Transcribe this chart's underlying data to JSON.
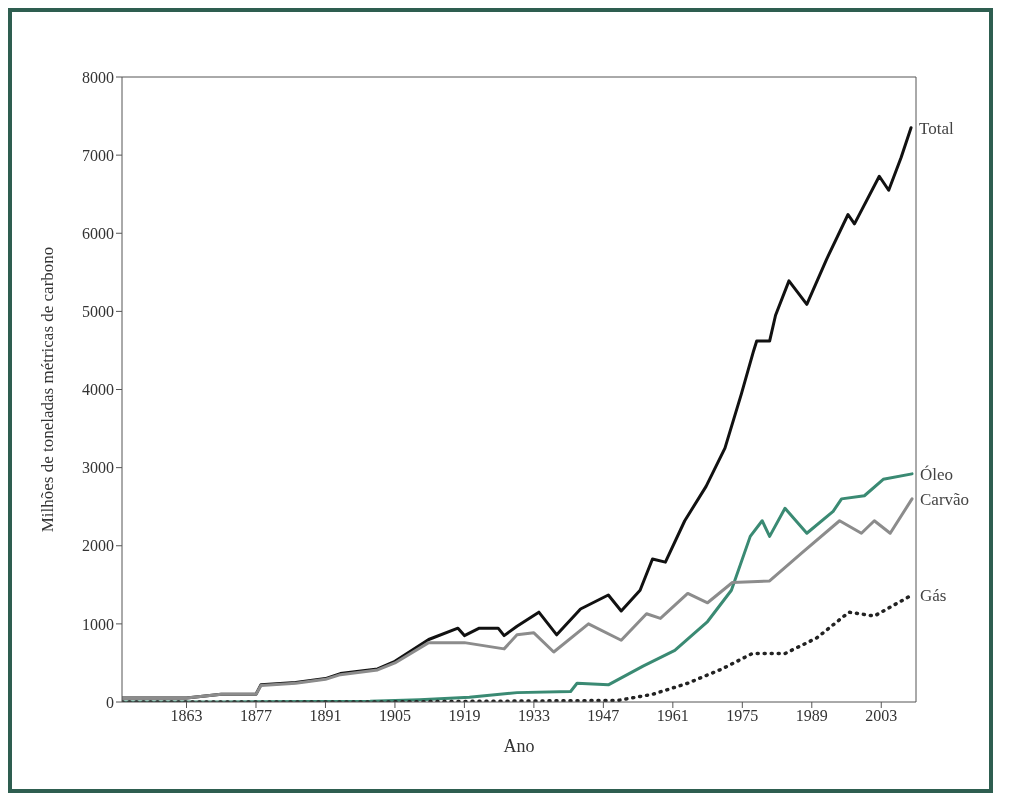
{
  "chart_data": {
    "type": "line",
    "xlabel": "Ano",
    "ylabel": "Milhões de toneladas métricas de carbono",
    "xlim": [
      1850,
      2010
    ],
    "xticks": [
      1863,
      1877,
      1891,
      1905,
      1919,
      1933,
      1947,
      1961,
      1975,
      1989,
      2003
    ],
    "ylim": [
      0,
      8000
    ],
    "yticks": [
      0,
      1000,
      2000,
      3000,
      4000,
      5000,
      6000,
      7000,
      8000
    ],
    "grid": false,
    "legend": false,
    "marker": "none",
    "series": [
      {
        "name": "Total",
        "color": "#111111",
        "line_style": "solid",
        "x": [
          1850,
          1863,
          1870,
          1877,
          1878,
          1885,
          1891,
          1894,
          1901.5,
          1905,
          1911.8,
          1917.7,
          1919,
          1922,
          1925.8,
          1927,
          1929.6,
          1934,
          1937.6,
          1942.4,
          1948,
          1950.6,
          1954.4,
          1956.9,
          1959.5,
          1963.4,
          1967.7,
          1971.5,
          1974.8,
          1977.3,
          1977.9,
          1980.5,
          1981.7,
          1984.4,
          1988,
          1992,
          1996.3,
          1997.6,
          2002.6,
          2004.5,
          2007,
          2009
        ],
        "values": [
          50,
          50,
          100,
          100,
          220,
          250,
          300,
          364,
          424,
          520,
          800,
          945,
          850,
          945,
          945,
          850,
          970,
          1150,
          860,
          1190,
          1370,
          1165,
          1430,
          1830,
          1790,
          2320,
          2760,
          3250,
          3940,
          4500,
          4620,
          4620,
          4950,
          5390,
          5090,
          5670,
          6240,
          6120,
          6730,
          6550,
          6970,
          7350
        ]
      },
      {
        "name": "Óleo",
        "color": "#3a8a73",
        "line_style": "solid",
        "x": [
          1850,
          1870,
          1900,
          1910,
          1920,
          1929.6,
          1940.4,
          1941.7,
          1948,
          1955,
          1961.4,
          1968,
          1972.8,
          1976.6,
          1979,
          1980.5,
          1983.6,
          1988,
          1993.3,
          1995,
          1999.6,
          2003.4,
          2009.2
        ],
        "values": [
          0,
          0,
          10,
          30,
          60,
          120,
          135,
          240,
          220,
          460,
          660,
          1030,
          1430,
          2120,
          2320,
          2120,
          2480,
          2160,
          2440,
          2600,
          2640,
          2850,
          2920
        ]
      },
      {
        "name": "Carvão",
        "color": "#8c8c8c",
        "line_style": "solid",
        "x": [
          1850,
          1863,
          1870,
          1877,
          1878,
          1885,
          1891,
          1894,
          1901.5,
          1905,
          1911.8,
          1919,
          1927,
          1929.6,
          1933,
          1937,
          1944,
          1950.6,
          1955.7,
          1958.5,
          1964,
          1968,
          1973,
          1980.5,
          1987,
          1994.6,
          1999,
          2001.6,
          2004.8,
          2009.2
        ],
        "values": [
          50,
          50,
          100,
          100,
          210,
          240,
          290,
          350,
          410,
          500,
          760,
          760,
          680,
          860,
          885,
          640,
          1000,
          790,
          1130,
          1070,
          1390,
          1270,
          1530,
          1550,
          1910,
          2320,
          2160,
          2320,
          2160,
          2600
        ]
      },
      {
        "name": "Gás",
        "color": "#222222",
        "line_style": "dotted",
        "x": [
          1850,
          1900,
          1950,
          1957,
          1964,
          1970.8,
          1977,
          1983.6,
          1990,
          1996.5,
          2001.6,
          2009.2
        ],
        "values": [
          0,
          0,
          20,
          100,
          240,
          420,
          620,
          620,
          820,
          1150,
          1100,
          1370
        ]
      }
    ]
  }
}
